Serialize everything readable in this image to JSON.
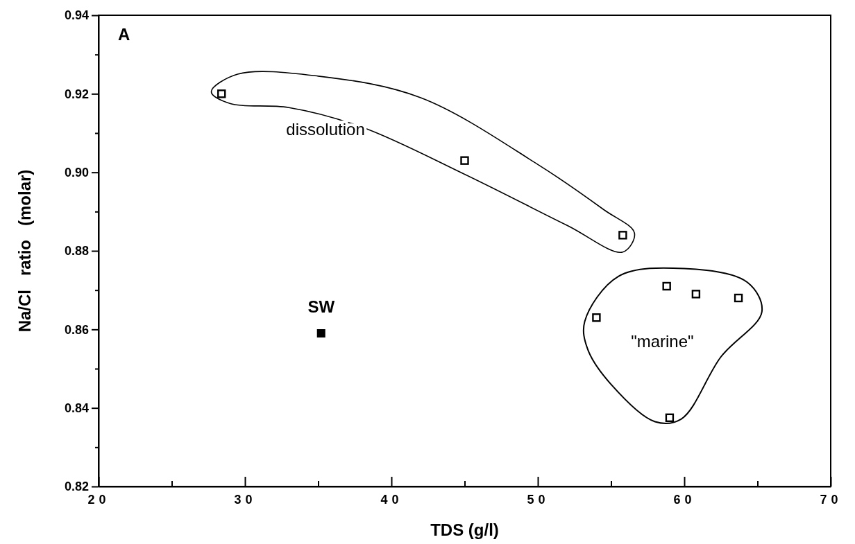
{
  "chart_data": {
    "type": "scatter",
    "xlabel": "TDS (g/l)",
    "ylabel": "Na/Cl   ratio   (molar)",
    "xlim": [
      20,
      70
    ],
    "ylim": [
      0.82,
      0.94
    ],
    "xticks": [
      20,
      {
        "value": 25,
        "label": null
      },
      30,
      {
        "value": 35,
        "label": null
      },
      40,
      {
        "value": 45,
        "label": null
      },
      50,
      {
        "value": 55,
        "label": null
      },
      60,
      {
        "value": 65,
        "label": null
      },
      70
    ],
    "yticks": [
      {
        "value": 0.82,
        "label": "0.82"
      },
      {
        "value": 0.83,
        "label": null
      },
      {
        "value": 0.84,
        "label": "0.84"
      },
      {
        "value": 0.85,
        "label": null
      },
      {
        "value": 0.86,
        "label": "0.86"
      },
      {
        "value": 0.87,
        "label": null
      },
      {
        "value": 0.88,
        "label": "0.88"
      },
      {
        "value": 0.89,
        "label": null
      },
      {
        "value": 0.9,
        "label": "0.90"
      },
      {
        "value": 0.91,
        "label": null
      },
      {
        "value": 0.92,
        "label": "0.92"
      },
      {
        "value": 0.93,
        "label": null
      },
      {
        "value": 0.94,
        "label": "0.94"
      }
    ],
    "marker": "square",
    "grid": false,
    "series": [
      {
        "color": "#000000",
        "x": [
          28.4,
          45.0,
          55.8,
          54.0,
          58.8,
          60.8,
          63.7,
          59.0
        ],
        "values": [
          0.92,
          0.903,
          0.884,
          0.863,
          0.871,
          0.869,
          0.868,
          0.8375
        ]
      },
      {
        "color": "#000000",
        "x": [
          35.2
        ],
        "values": [
          0.859
        ]
      }
    ],
    "annotations": [
      "A",
      "dissolution",
      "\"marine\"",
      {
        "text": "SW",
        "x": 35.2,
        "y": 0.859
      }
    ]
  }
}
